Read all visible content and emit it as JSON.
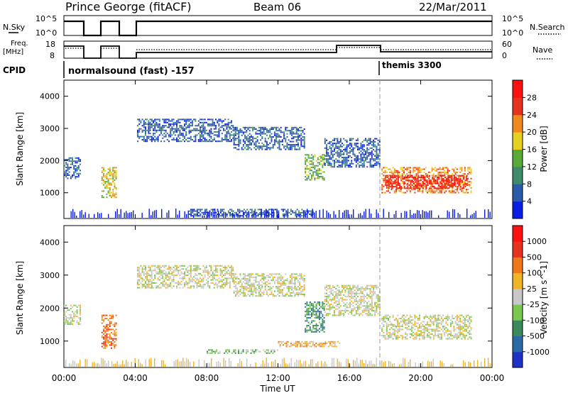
{
  "header": {
    "station": "Prince George (fitACF)",
    "beam": "Beam 06",
    "date": "22/Mar/2011"
  },
  "top_panels": {
    "nsky_label": "N.Sky",
    "nsearch_label": "N.Search",
    "nsky_ticks": [
      "10^5",
      "10^0"
    ],
    "nsearch_ticks": [
      "10^5",
      "10^0"
    ],
    "freq_label_1": "Freq.",
    "freq_label_2": "[MHz]",
    "freq_ticks": [
      "18",
      "8"
    ],
    "nave_label": "Nave",
    "nave_ticks": [
      "60",
      "0"
    ],
    "cpid_label": "CPID",
    "cpid_segments": [
      {
        "name": "normalsound (fast) -157"
      },
      {
        "name": "themis 3300"
      }
    ]
  },
  "x_axis": {
    "label": "Time UT",
    "ticks": [
      "00:00",
      "04:00",
      "08:00",
      "12:00",
      "16:00",
      "20:00",
      "00:00"
    ]
  },
  "chart_data": [
    {
      "type": "heatmap",
      "title": "Power",
      "ylabel": "Slant Range [km]",
      "yticks": [
        "1000",
        "2000",
        "3000",
        "4000"
      ],
      "ylim": [
        200,
        4500
      ],
      "xlim_hours": [
        0,
        24
      ],
      "colorbar_label": "Power [dB]",
      "colorbar_ticks": [
        "4",
        "8",
        "12",
        "16",
        "20",
        "24",
        "28"
      ],
      "colors": [
        "#0a1ee6",
        "#2a5aa8",
        "#3f8a6a",
        "#5aaa3a",
        "#e6d21e",
        "#f08a1e",
        "#e6321e",
        "#ff1010"
      ],
      "regions": [
        {
          "t": [
            0.0,
            0.9
          ],
          "r": [
            1450,
            2100
          ],
          "level": 1
        },
        {
          "t": [
            2.1,
            2.9
          ],
          "r": [
            850,
            1800
          ],
          "level": 4
        },
        {
          "t": [
            4.1,
            9.5
          ],
          "r": [
            2600,
            3300
          ],
          "level": 1
        },
        {
          "t": [
            9.5,
            13.5
          ],
          "r": [
            2350,
            3050
          ],
          "level": 1
        },
        {
          "t": [
            13.5,
            14.6
          ],
          "r": [
            1400,
            2200
          ],
          "level": 3
        },
        {
          "t": [
            14.6,
            17.7
          ],
          "r": [
            1800,
            2700
          ],
          "level": 1
        },
        {
          "t": [
            17.8,
            22.8
          ],
          "r": [
            1000,
            1800
          ],
          "level": 5
        },
        {
          "t": [
            18.0,
            22.6
          ],
          "r": [
            1150,
            1550
          ],
          "level": 7
        },
        {
          "t": [
            7.0,
            14.0
          ],
          "r": [
            300,
            500
          ],
          "level": 1
        }
      ]
    },
    {
      "type": "heatmap",
      "title": "Velocity",
      "ylabel": "Slant Range [km]",
      "yticks": [
        "1000",
        "2000",
        "3000",
        "4000"
      ],
      "ylim": [
        200,
        4500
      ],
      "xlim_hours": [
        0,
        24
      ],
      "colorbar_label": "Velocity [m s^-1]",
      "colorbar_ticks": [
        "1000",
        "500",
        "100",
        "25",
        "-25",
        "-100",
        "-500",
        "-1000"
      ],
      "colors": [
        "#1e32c8",
        "#2a6aa8",
        "#3a8a5a",
        "#7ac850",
        "#c8c8c8",
        "#f0b428",
        "#f07818",
        "#e6321e",
        "#ff1010"
      ],
      "regions": [
        {
          "t": [
            0.0,
            0.9
          ],
          "r": [
            1500,
            2100
          ],
          "level": 4
        },
        {
          "t": [
            2.1,
            2.9
          ],
          "r": [
            800,
            1800
          ],
          "level": 6
        },
        {
          "t": [
            4.1,
            9.5
          ],
          "r": [
            2600,
            3300
          ],
          "level": 4
        },
        {
          "t": [
            9.5,
            13.5
          ],
          "r": [
            2350,
            3050
          ],
          "level": 4
        },
        {
          "t": [
            13.5,
            14.6
          ],
          "r": [
            1300,
            2200
          ],
          "level": 2
        },
        {
          "t": [
            14.6,
            17.7
          ],
          "r": [
            1800,
            2700
          ],
          "level": 4
        },
        {
          "t": [
            17.8,
            22.8
          ],
          "r": [
            1050,
            1800
          ],
          "level": 4
        },
        {
          "t": [
            8.0,
            12.0
          ],
          "r": [
            650,
            750
          ],
          "level": 3
        },
        {
          "t": [
            12.0,
            15.5
          ],
          "r": [
            850,
            1000
          ],
          "level": 5
        }
      ]
    }
  ]
}
